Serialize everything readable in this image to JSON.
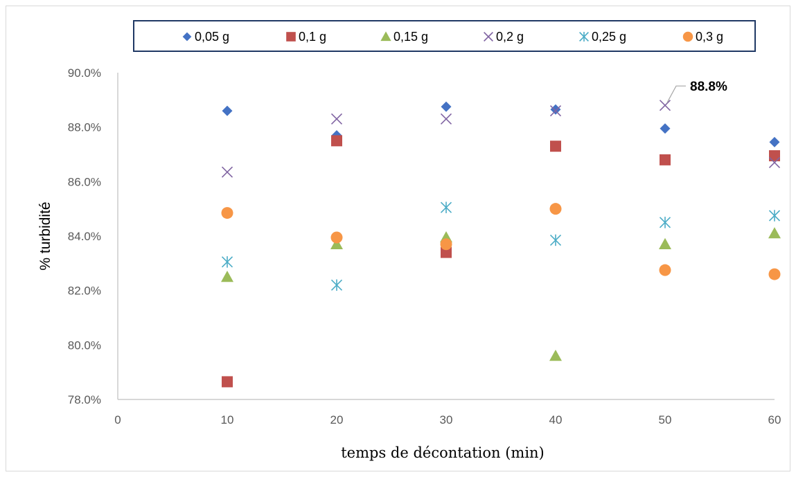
{
  "chart_data": {
    "type": "scatter",
    "title": "",
    "xlabel": "temps de décontation (min)",
    "ylabel": "% turbidité",
    "xlim": [
      0,
      60
    ],
    "ylim": [
      78.0,
      90.0
    ],
    "x_ticks": [
      "0",
      "10",
      "20",
      "30",
      "40",
      "50",
      "60"
    ],
    "y_ticks": [
      "78.0%",
      "80.0%",
      "82.0%",
      "84.0%",
      "86.0%",
      "88.0%",
      "90.0%"
    ],
    "grid": false,
    "legend_position": "top",
    "series": [
      {
        "name": "0,05 g",
        "marker": "diamond",
        "color": "#4472c4",
        "x": [
          10,
          20,
          30,
          40,
          50,
          60
        ],
        "y": [
          88.6,
          87.7,
          88.75,
          88.65,
          87.95,
          87.45
        ]
      },
      {
        "name": "0,1 g",
        "marker": "square",
        "color": "#c0504d",
        "x": [
          10,
          20,
          30,
          40,
          50,
          60
        ],
        "y": [
          78.65,
          87.5,
          83.4,
          87.3,
          86.8,
          86.95
        ]
      },
      {
        "name": "0,15 g",
        "marker": "triangle",
        "color": "#9bbb59",
        "x": [
          10,
          20,
          30,
          40,
          50,
          60
        ],
        "y": [
          82.5,
          83.7,
          83.95,
          79.6,
          83.7,
          84.1
        ]
      },
      {
        "name": "0,2 g",
        "marker": "x",
        "color": "#8064a2",
        "x": [
          10,
          20,
          30,
          40,
          50,
          60
        ],
        "y": [
          86.35,
          88.3,
          88.3,
          88.6,
          88.8,
          86.7
        ]
      },
      {
        "name": "0,25 g",
        "marker": "asterisk",
        "color": "#4bacc6",
        "x": [
          10,
          20,
          30,
          40,
          50,
          60
        ],
        "y": [
          83.05,
          82.2,
          85.05,
          83.85,
          84.5,
          84.75
        ]
      },
      {
        "name": "0,3 g",
        "marker": "circle",
        "color": "#f79646",
        "x": [
          10,
          20,
          30,
          40,
          50,
          60
        ],
        "y": [
          84.85,
          83.95,
          83.7,
          85.0,
          82.75,
          82.6
        ]
      }
    ],
    "annotations": [
      {
        "text": "88.8%",
        "x": 50,
        "y": 88.8,
        "series": "0,2 g"
      }
    ]
  }
}
